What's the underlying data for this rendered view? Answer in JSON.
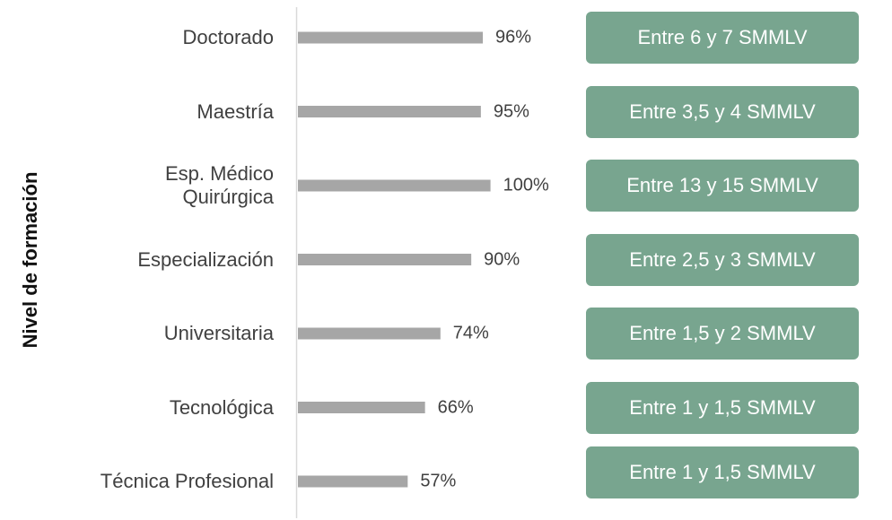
{
  "chart_data": {
    "type": "bar",
    "orientation": "horizontal",
    "y_label": "Nivel de formación",
    "categories": [
      "Doctorado",
      "Maestría",
      "Esp. Médico\nQuirúrgica",
      "Especialización",
      "Universitaria",
      "Tecnológica",
      "Técnica Profesional"
    ],
    "values": [
      96,
      95,
      100,
      90,
      74,
      66,
      57
    ],
    "value_labels": [
      "96%",
      "95%",
      "100%",
      "90%",
      "74%",
      "66%",
      "57%"
    ],
    "color": "#a6a6a6",
    "annotations": [
      "Entre 6 y 7 SMMLV",
      "Entre 3,5 y 4 SMMLV",
      "Entre 13 y 15 SMMLV",
      "Entre 2,5 y 3 SMMLV",
      "Entre 1,5 y 2 SMMLV",
      "Entre 1 y 1,5 SMMLV",
      "Entre 1 y 1,5 SMMLV"
    ],
    "annotation_color": "#78a58f"
  }
}
